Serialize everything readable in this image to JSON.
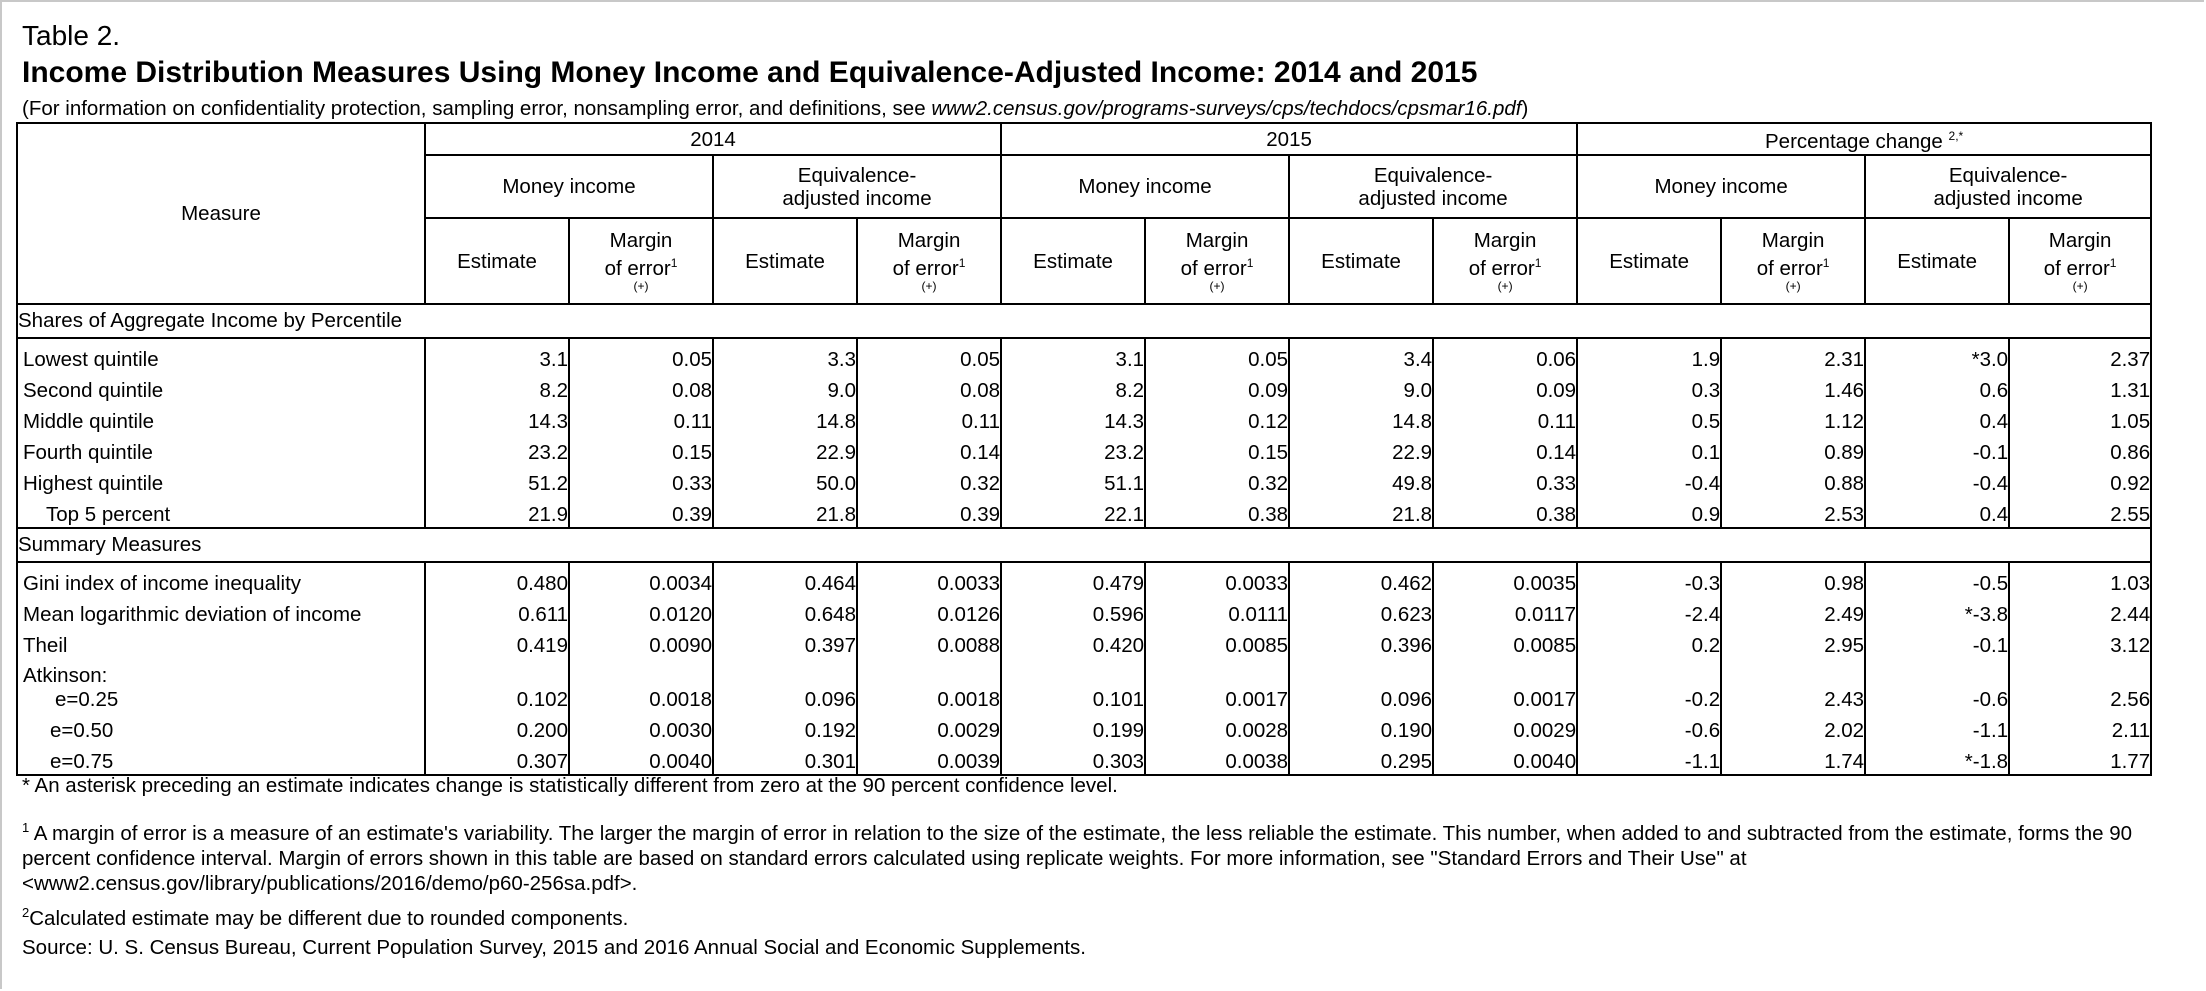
{
  "table": {
    "label": "Table 2.",
    "title": "Income Distribution Measures Using Money Income and Equivalence-Adjusted Income: 2014 and 2015",
    "note_prefix": "(For information on confidentiality protection, sampling error, nonsampling error, and definitions, see ",
    "note_link": "www2.census.gov/programs-surveys/cps/techdocs/cpsmar16.pdf",
    "note_suffix": ")"
  },
  "header": {
    "measure": "Measure",
    "year_2014": "2014",
    "year_2015": "2015",
    "pct_change": "Percentage change",
    "pct_change_sup": "2,*",
    "money_income": "Money income",
    "equiv_line1": "Equivalence-",
    "equiv_line2": "adjusted income",
    "estimate": "Estimate",
    "moe_line1": "Margin",
    "moe_line2": "of error",
    "moe_sup": "1",
    "moe_pm": "(+)"
  },
  "sections": {
    "shares": "Shares of Aggregate Income by Percentile",
    "summary": "Summary Measures"
  },
  "rows": {
    "lowest": {
      "label": "Lowest quintile",
      "v": [
        "3.1",
        "0.05",
        "3.3",
        "0.05",
        "3.1",
        "0.05",
        "3.4",
        "0.06",
        "1.9",
        "2.31",
        "*3.0",
        "2.37"
      ]
    },
    "second": {
      "label": "Second quintile",
      "v": [
        "8.2",
        "0.08",
        "9.0",
        "0.08",
        "8.2",
        "0.09",
        "9.0",
        "0.09",
        "0.3",
        "1.46",
        "0.6",
        "1.31"
      ]
    },
    "middle": {
      "label": "Middle quintile",
      "v": [
        "14.3",
        "0.11",
        "14.8",
        "0.11",
        "14.3",
        "0.12",
        "14.8",
        "0.11",
        "0.5",
        "1.12",
        "0.4",
        "1.05"
      ]
    },
    "fourth": {
      "label": "Fourth quintile",
      "v": [
        "23.2",
        "0.15",
        "22.9",
        "0.14",
        "23.2",
        "0.15",
        "22.9",
        "0.14",
        "0.1",
        "0.89",
        "-0.1",
        "0.86"
      ]
    },
    "highest": {
      "label": "Highest quintile",
      "v": [
        "51.2",
        "0.33",
        "50.0",
        "0.32",
        "51.1",
        "0.32",
        "49.8",
        "0.33",
        "-0.4",
        "0.88",
        "-0.4",
        "0.92"
      ]
    },
    "top5": {
      "label": "Top 5 percent",
      "v": [
        "21.9",
        "0.39",
        "21.8",
        "0.39",
        "22.1",
        "0.38",
        "21.8",
        "0.38",
        "0.9",
        "2.53",
        "0.4",
        "2.55"
      ]
    },
    "gini": {
      "label": "Gini index of income inequality",
      "v": [
        "0.480",
        "0.0034",
        "0.464",
        "0.0033",
        "0.479",
        "0.0033",
        "0.462",
        "0.0035",
        "-0.3",
        "0.98",
        "-0.5",
        "1.03"
      ]
    },
    "mld": {
      "label": "Mean logarithmic deviation of income",
      "v": [
        "0.611",
        "0.0120",
        "0.648",
        "0.0126",
        "0.596",
        "0.0111",
        "0.623",
        "0.0117",
        "-2.4",
        "2.49",
        "*-3.8",
        "2.44"
      ]
    },
    "theil": {
      "label": "Theil",
      "v": [
        "0.419",
        "0.0090",
        "0.397",
        "0.0088",
        "0.420",
        "0.0085",
        "0.396",
        "0.0085",
        "0.2",
        "2.95",
        "-0.1",
        "3.12"
      ]
    },
    "atkinson_label": "Atkinson:",
    "e025": {
      "label": "e=0.25",
      "v": [
        "0.102",
        "0.0018",
        "0.096",
        "0.0018",
        "0.101",
        "0.0017",
        "0.096",
        "0.0017",
        "-0.2",
        "2.43",
        "-0.6",
        "2.56"
      ]
    },
    "e050": {
      "label": "e=0.50",
      "v": [
        "0.200",
        "0.0030",
        "0.192",
        "0.0029",
        "0.199",
        "0.0028",
        "0.190",
        "0.0029",
        "-0.6",
        "2.02",
        "-1.1",
        "2.11"
      ]
    },
    "e075": {
      "label": "e=0.75",
      "v": [
        "0.307",
        "0.0040",
        "0.301",
        "0.0039",
        "0.303",
        "0.0038",
        "0.295",
        "0.0040",
        "-1.1",
        "1.74",
        "*-1.8",
        "1.77"
      ]
    }
  },
  "footnotes": {
    "asterisk": "* An asterisk preceding an estimate indicates change is statistically different from zero at the 90 percent confidence level.",
    "fn1_sup": "1",
    "fn1": " A margin of error is a measure of an estimate's variability. The larger the margin of error in relation to the size of the estimate, the less reliable the estimate. This number, when added to and subtracted from the estimate, forms the 90 percent confidence interval.  Margin of errors shown in this table are based on standard errors calculated using replicate weights. For more information, see \"Standard Errors and Their Use\" at <www2.census.gov/library/publications/2016/demo/p60-256sa.pdf>.",
    "fn2_sup": "2",
    "fn2": "Calculated estimate may be different due to rounded components.",
    "source": "Source: U. S. Census Bureau, Current Population Survey, 2015 and 2016 Annual Social and Economic Supplements."
  }
}
